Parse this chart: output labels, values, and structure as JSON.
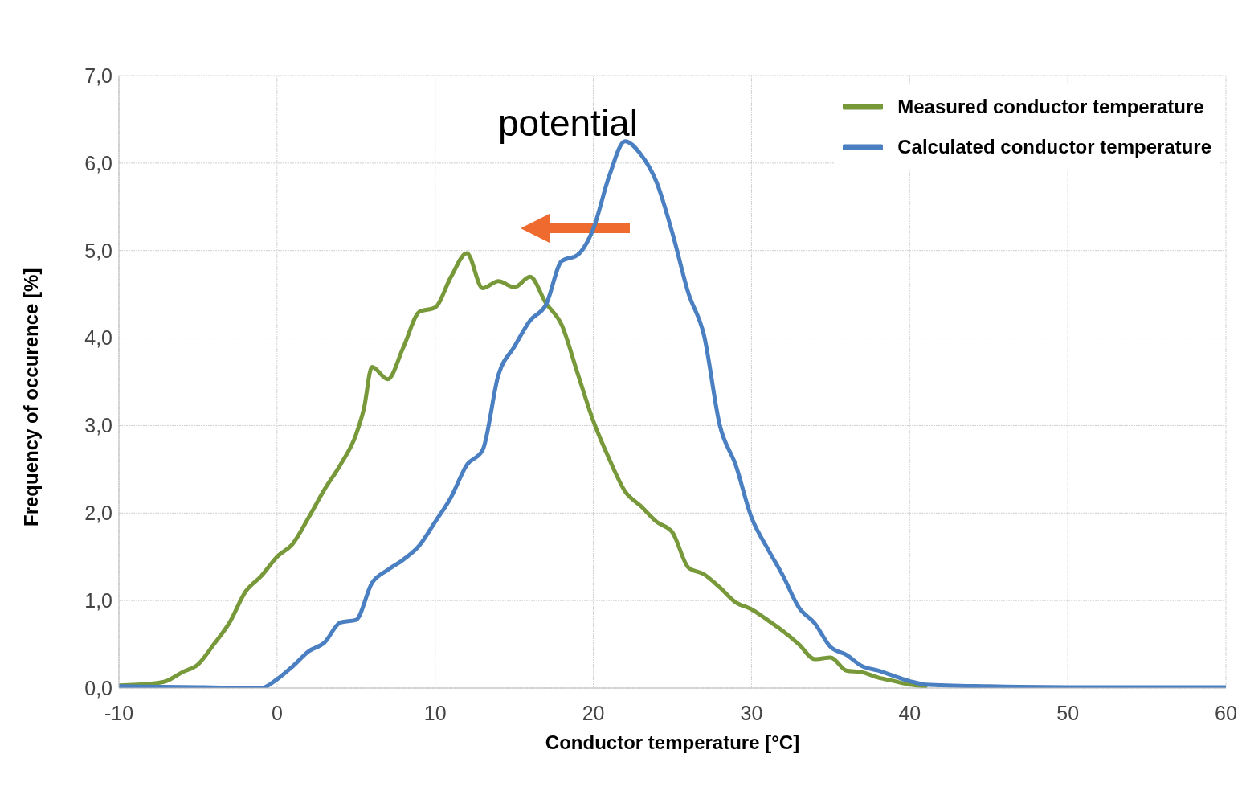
{
  "chart_data": {
    "type": "line",
    "xlabel": "Conductor temperature [°C]",
    "ylabel": "Frequency of occurence [%]",
    "xlim": [
      -10,
      60
    ],
    "xticks": [
      -10,
      0,
      10,
      20,
      30,
      40,
      50,
      60
    ],
    "ylim": [
      0,
      7
    ],
    "yticks": [
      {
        "value": 0,
        "label": "0,0"
      },
      {
        "value": 1,
        "label": "1,0"
      },
      {
        "value": 2,
        "label": "2,0"
      },
      {
        "value": 3,
        "label": "3,0"
      },
      {
        "value": 4,
        "label": "4,0"
      },
      {
        "value": 5,
        "label": "5,0"
      },
      {
        "value": 6,
        "label": "6,0"
      },
      {
        "value": 7,
        "label": "7,0"
      }
    ],
    "grid": true,
    "legend": "top right",
    "marker": "none",
    "line_style": "solid",
    "annotations": [
      "potential"
    ],
    "series": [
      {
        "name": "Measured conductor temperature",
        "color": "#77993a",
        "x": [
          -10,
          -8,
          -7,
          -6,
          -5,
          -4,
          -3,
          -2,
          -1,
          0,
          1,
          2,
          3,
          4,
          5,
          5.5,
          6,
          7,
          8,
          9,
          10,
          11,
          12,
          13,
          14,
          15,
          16,
          17,
          18,
          19,
          20,
          21,
          22,
          23,
          24,
          25,
          26,
          27,
          28,
          29,
          30,
          31,
          32,
          33,
          34,
          35,
          36,
          37,
          38,
          39,
          40,
          41
        ],
        "values": [
          0.03,
          0.05,
          0.08,
          0.18,
          0.27,
          0.5,
          0.75,
          1.1,
          1.28,
          1.5,
          1.65,
          1.95,
          2.27,
          2.55,
          2.9,
          3.2,
          3.67,
          3.53,
          3.9,
          4.3,
          4.35,
          4.7,
          4.97,
          4.57,
          4.65,
          4.58,
          4.7,
          4.4,
          4.15,
          3.6,
          3.05,
          2.62,
          2.25,
          2.08,
          1.9,
          1.78,
          1.38,
          1.3,
          1.15,
          0.98,
          0.9,
          0.78,
          0.65,
          0.5,
          0.33,
          0.35,
          0.2,
          0.18,
          0.12,
          0.08,
          0.04,
          0.02
        ]
      },
      {
        "name": "Calculated conductor temperature",
        "color": "#4a7fc1",
        "x": [
          -10,
          -5,
          -1,
          0,
          1,
          2,
          3,
          4,
          5,
          6,
          7,
          8,
          9,
          10,
          11,
          12,
          13,
          14,
          15,
          16,
          17,
          18,
          19,
          20,
          21,
          22,
          23,
          24,
          25,
          26,
          27,
          28,
          29,
          30,
          31,
          32,
          33,
          34,
          35,
          36,
          37,
          38,
          39,
          40,
          41,
          45,
          50,
          60
        ],
        "values": [
          0.02,
          0.01,
          0.0,
          0.1,
          0.25,
          0.42,
          0.52,
          0.75,
          0.78,
          1.2,
          1.35,
          1.47,
          1.63,
          1.9,
          2.18,
          2.55,
          2.72,
          3.58,
          3.9,
          4.2,
          4.38,
          4.88,
          4.95,
          5.25,
          5.85,
          6.25,
          6.1,
          5.78,
          5.2,
          4.52,
          4.03,
          3.0,
          2.55,
          1.95,
          1.6,
          1.28,
          0.92,
          0.74,
          0.47,
          0.38,
          0.25,
          0.2,
          0.14,
          0.08,
          0.04,
          0.02,
          0.01,
          0.01
        ]
      }
    ]
  }
}
